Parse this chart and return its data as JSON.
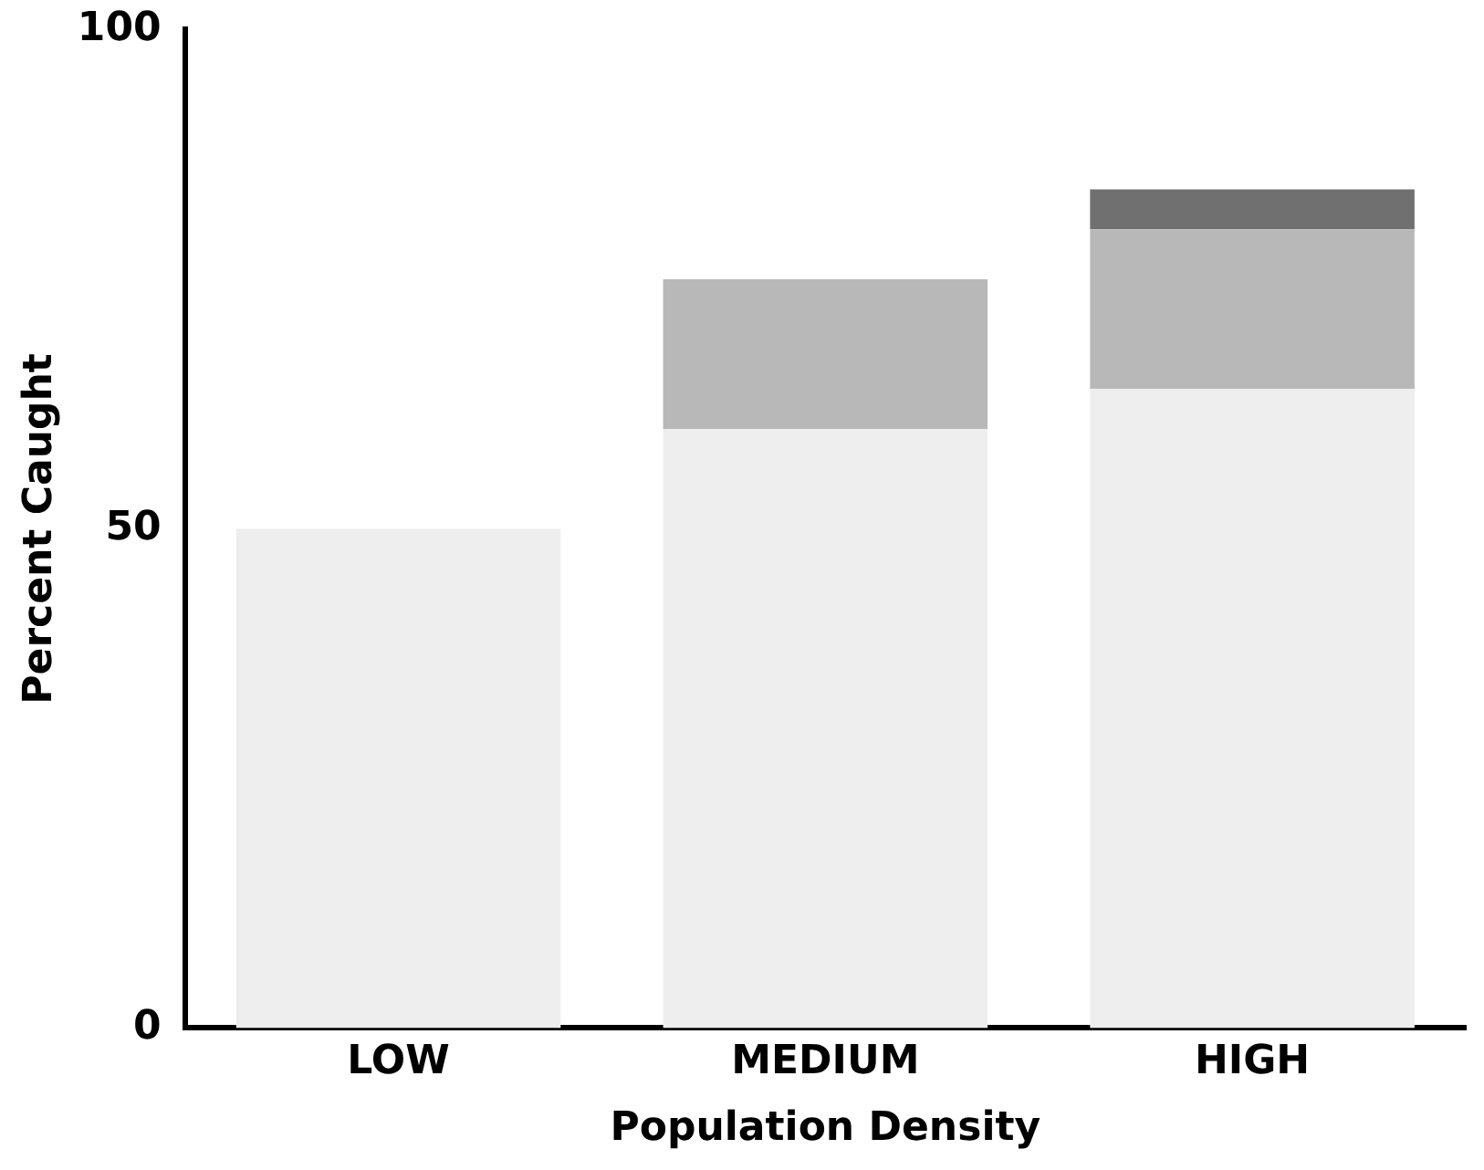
{
  "chart_data": {
    "type": "bar",
    "stacked": true,
    "xlabel": "Population Density",
    "ylabel": "Percent Caught",
    "categories": [
      "LOW",
      "MEDIUM",
      "HIGH"
    ],
    "series": [
      {
        "color": "#eeeeee",
        "values": [
          50,
          60,
          64
        ]
      },
      {
        "color": "#b8b8b8",
        "values": [
          null,
          15,
          16
        ]
      },
      {
        "color": "#707070",
        "values": [
          null,
          null,
          4
        ]
      }
    ],
    "ylim": [
      0,
      100
    ],
    "yticks": [
      0,
      50,
      100
    ],
    "grid": false,
    "legend": false
  }
}
